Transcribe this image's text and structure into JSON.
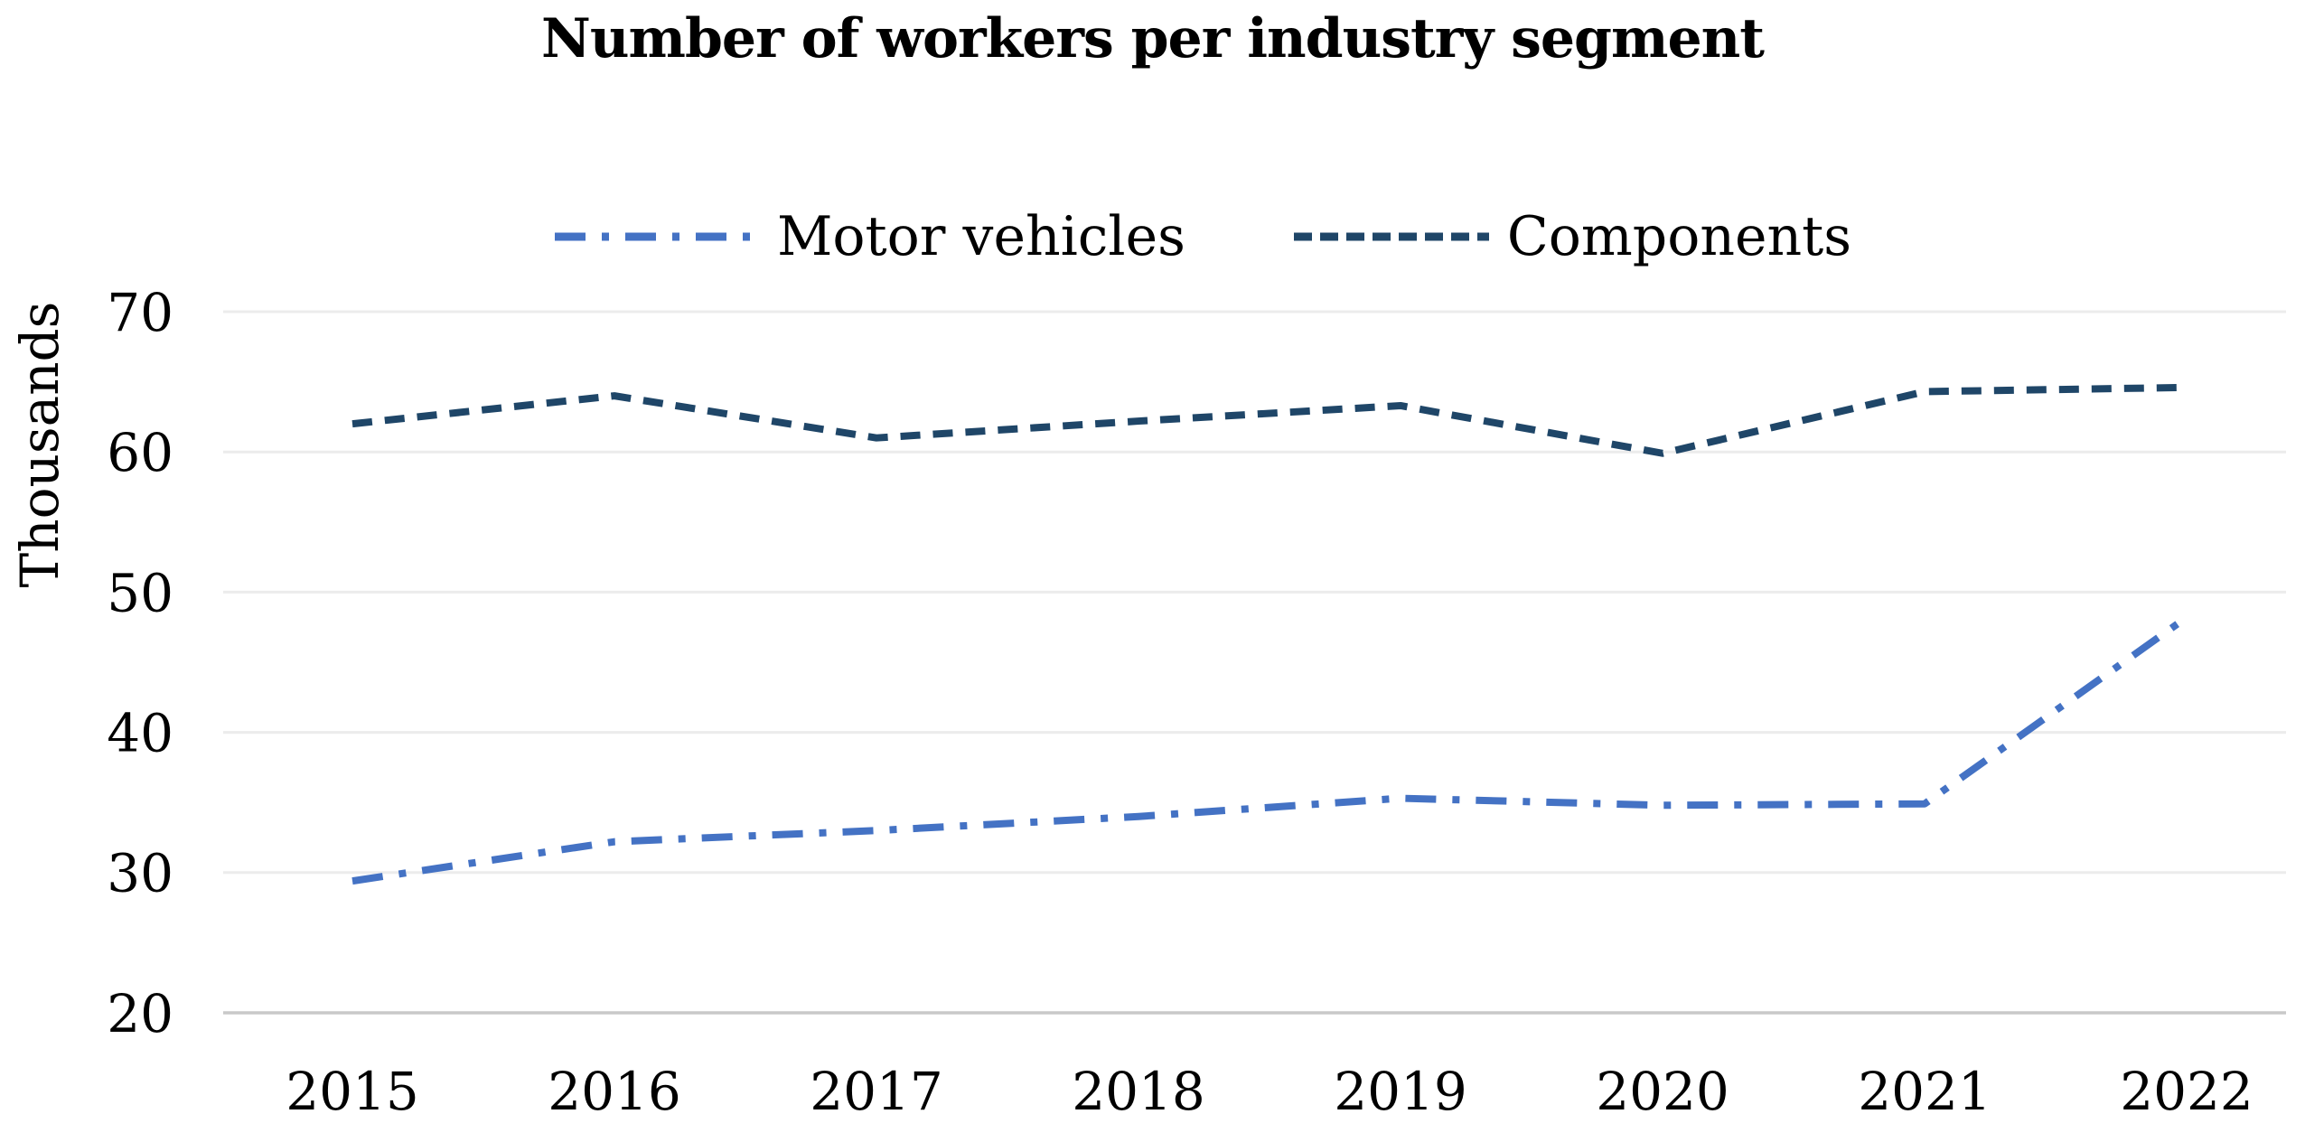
{
  "title": "Number of workers per industry segment",
  "y_axis_title": "Thousands",
  "legend": [
    {
      "label": "Motor vehicles",
      "color": "#4472c4",
      "line_style": "dash-dot"
    },
    {
      "label": "Components",
      "color": "#1f4668",
      "line_style": "dash"
    }
  ],
  "colors": {
    "motor_vehicles": "#4472c4",
    "components": "#1f4668",
    "gridline": "#ececec",
    "axis_line": "#c9c9c9",
    "text": "#000000",
    "background": "#ffffff"
  },
  "chart_data": {
    "type": "line",
    "title": "Number of workers per industry segment",
    "xlabel": "",
    "ylabel": "Thousands",
    "x": [
      2015,
      2016,
      2017,
      2018,
      2019,
      2020,
      2021,
      2022
    ],
    "yticks": [
      20,
      30,
      40,
      50,
      60,
      70
    ],
    "ylim": [
      20,
      70
    ],
    "grid": true,
    "legend_position": "top",
    "series": [
      {
        "name": "Motor vehicles",
        "color": "#4472c4",
        "dash": "dash-dot",
        "values": [
          29.4,
          32.2,
          33.0,
          34.0,
          35.3,
          34.8,
          34.9,
          48.2
        ]
      },
      {
        "name": "Components",
        "color": "#1f4668",
        "dash": "dash",
        "values": [
          62.0,
          64.0,
          61.0,
          62.2,
          63.3,
          59.9,
          64.3,
          64.6
        ]
      }
    ]
  }
}
